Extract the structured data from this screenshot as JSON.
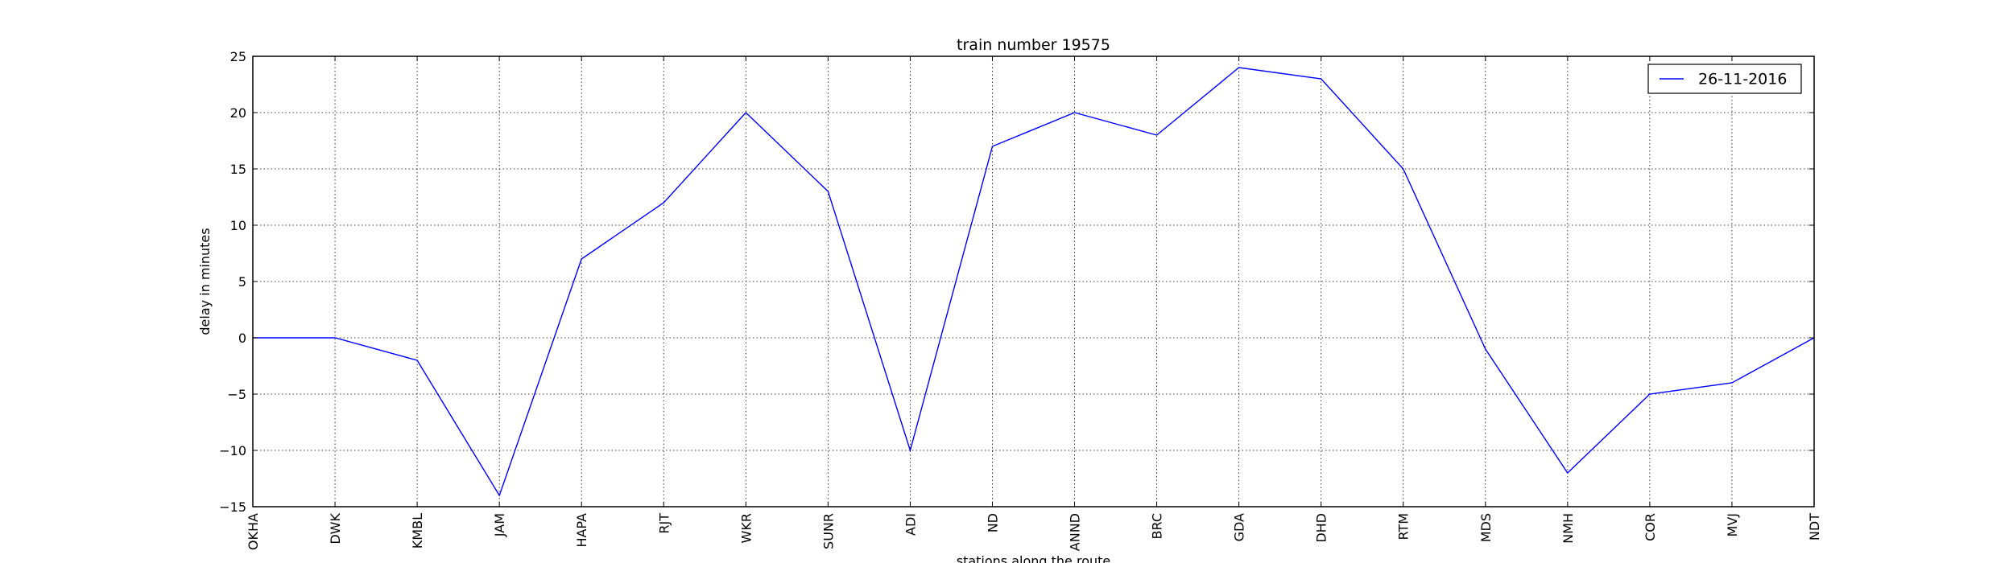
{
  "chart_data": {
    "type": "line",
    "title": "train number 19575",
    "xlabel": "stations along the route",
    "ylabel": "delay in minutes",
    "categories": [
      "OKHA",
      "DWK",
      "KMBL",
      "JAM",
      "HAPA",
      "RJT",
      "WKR",
      "SUNR",
      "ADI",
      "ND",
      "ANND",
      "BRC",
      "GDA",
      "DHD",
      "RTM",
      "MDS",
      "NMH",
      "COR",
      "MVJ",
      "NDT"
    ],
    "series": [
      {
        "name": "26-11-2016",
        "color": "#0000ff",
        "values": [
          0,
          0,
          -2,
          -14,
          7,
          12,
          20,
          13,
          -10,
          17,
          20,
          18,
          24,
          23,
          15,
          -1,
          -12,
          -5,
          -4,
          0
        ]
      }
    ],
    "ylim": [
      -15,
      25
    ],
    "yticks": [
      -15,
      -10,
      -5,
      0,
      5,
      10,
      15,
      20,
      25
    ],
    "ytick_labels": [
      "−15",
      "−10",
      "−5",
      "0",
      "5",
      "10",
      "15",
      "20",
      "25"
    ],
    "grid": true,
    "legend_position": "top-right"
  }
}
